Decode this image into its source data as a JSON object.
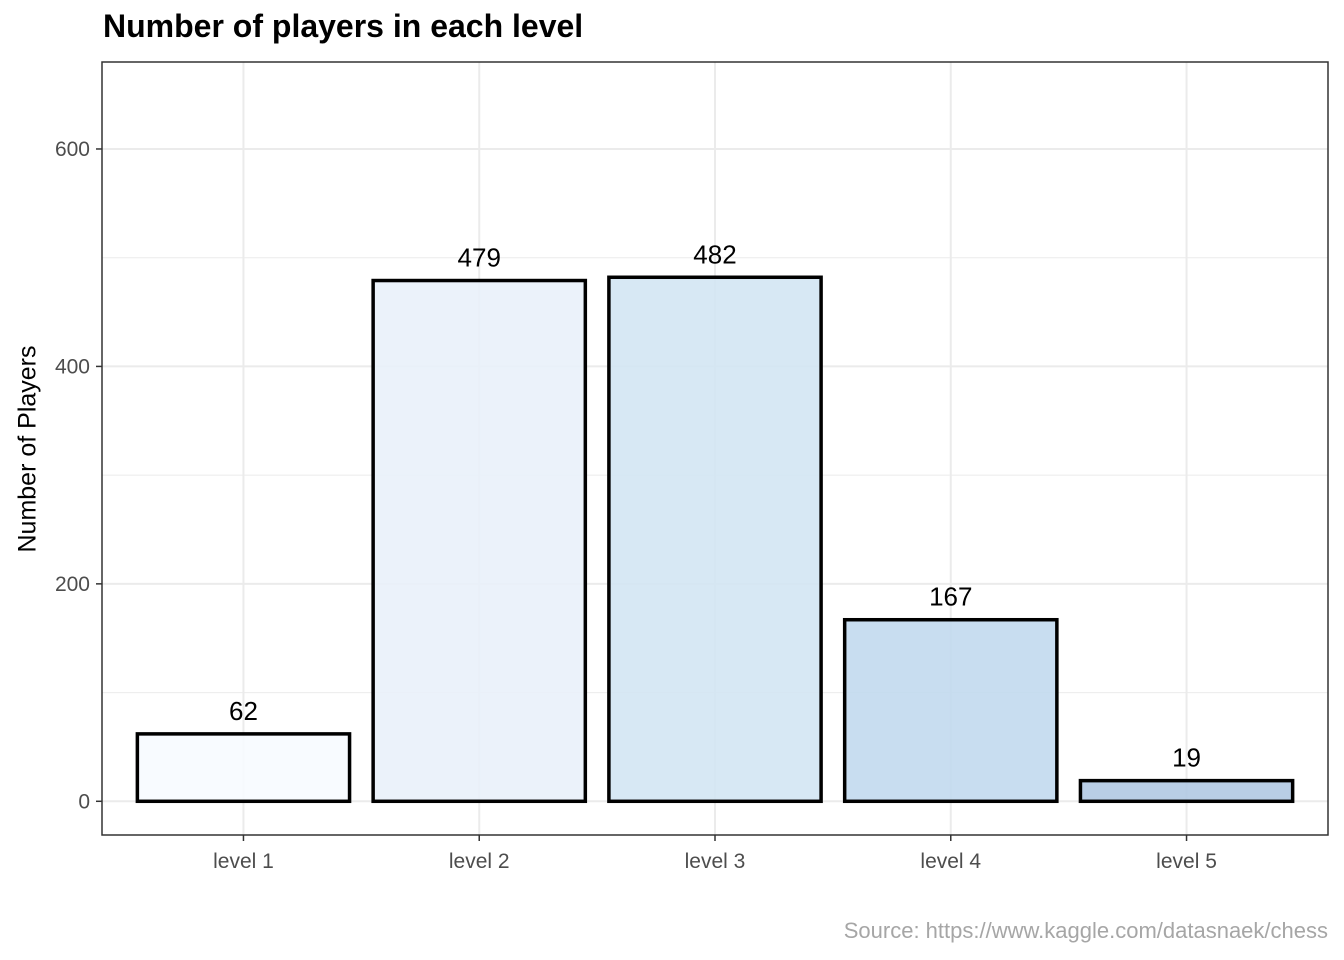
{
  "chart_data": {
    "type": "bar",
    "title": "Number of players in each level",
    "xlabel": "",
    "ylabel": "Number of Players",
    "caption": "Source: https://www.kaggle.com/datasnaek/chess",
    "categories": [
      "level 1",
      "level 2",
      "level 3",
      "level 4",
      "level 5"
    ],
    "values": [
      62,
      479,
      482,
      167,
      19
    ],
    "data_labels": [
      "62",
      "479",
      "482",
      "167",
      "19"
    ],
    "ylim": [
      -31,
      680
    ],
    "yticks": [
      0,
      200,
      400,
      600
    ],
    "ytick_labels": [
      "0",
      "200",
      "400",
      "600"
    ],
    "grid": true,
    "legend": "none",
    "bar_fill_colors": [
      "#f7fbff",
      "#e9f1fa",
      "#d3e6f3",
      "#c2d9ee",
      "#b1c9e3"
    ],
    "bar_outline_color": "#000000",
    "grid_color": "#ebebeb",
    "panel_border_color": "#333333"
  }
}
